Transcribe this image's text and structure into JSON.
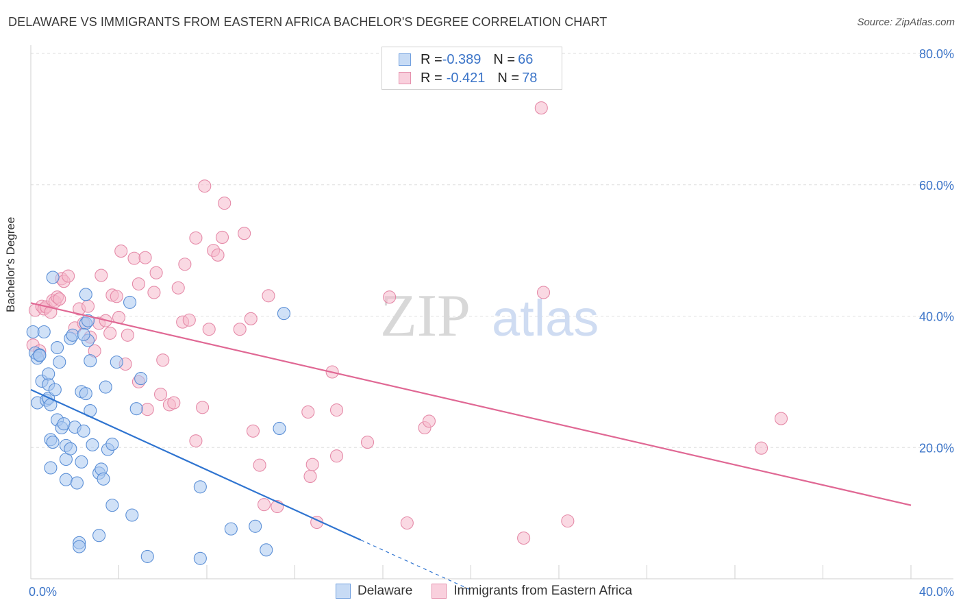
{
  "title": "DELAWARE VS IMMIGRANTS FROM EASTERN AFRICA BACHELOR'S DEGREE CORRELATION CHART",
  "source": "Source: ZipAtlas.com",
  "watermark": {
    "zip": "ZIP",
    "atlas": "atlas"
  },
  "legend_top": {
    "rows": [
      {
        "r_label": "R = ",
        "r_value": "-0.389",
        "n_label": "N = ",
        "n_value": "66"
      },
      {
        "r_label": "R = ",
        "r_value": "-0.421",
        "n_label": "N = ",
        "n_value": "78"
      }
    ]
  },
  "legend_bottom": [
    "Delaware",
    "Immigrants from Eastern Africa"
  ],
  "colors": {
    "blue_fill": "#aac8f0",
    "blue_stroke": "#5b8fd6",
    "blue_line": "#2f74d0",
    "pink_fill": "#f6b9cc",
    "pink_stroke": "#e58aa8",
    "pink_line": "#e06894",
    "axis_text": "#3b74c8",
    "grid": "#dddddd"
  },
  "chart_data": {
    "type": "scatter",
    "title": "DELAWARE VS IMMIGRANTS FROM EASTERN AFRICA BACHELOR'S DEGREE CORRELATION CHART",
    "xlabel": "",
    "ylabel": "Bachelor's Degree",
    "xlim": [
      0,
      40
    ],
    "ylim": [
      0,
      80
    ],
    "x_tick_labels": [
      "0.0%",
      "40.0%"
    ],
    "y_tick_labels": [
      "20.0%",
      "40.0%",
      "60.0%",
      "80.0%"
    ],
    "y_ticks": [
      20,
      40,
      60,
      80
    ],
    "grid": true,
    "legend_placement": "top-center",
    "series": [
      {
        "name": "Delaware",
        "r": -0.389,
        "n": 66,
        "trend": {
          "x": [
            0,
            15
          ],
          "y": [
            28.8,
            5.9
          ],
          "dashed_to": [
            20,
            -1.7
          ]
        },
        "points": [
          [
            0.1,
            37.6
          ],
          [
            0.2,
            34.4
          ],
          [
            0.3,
            33.6
          ],
          [
            0.3,
            26.8
          ],
          [
            0.4,
            34.1
          ],
          [
            0.5,
            30.1
          ],
          [
            0.6,
            37.6
          ],
          [
            0.7,
            27.2
          ],
          [
            0.8,
            29.6
          ],
          [
            0.8,
            31.2
          ],
          [
            0.8,
            27.5
          ],
          [
            0.9,
            26.5
          ],
          [
            0.9,
            16.9
          ],
          [
            0.9,
            21.2
          ],
          [
            1.0,
            20.8
          ],
          [
            1.1,
            28.8
          ],
          [
            1.0,
            45.9
          ],
          [
            1.2,
            35.2
          ],
          [
            1.3,
            33.0
          ],
          [
            1.2,
            24.2
          ],
          [
            1.4,
            23.0
          ],
          [
            1.5,
            23.6
          ],
          [
            1.6,
            20.3
          ],
          [
            1.6,
            18.2
          ],
          [
            1.6,
            15.1
          ],
          [
            1.8,
            19.8
          ],
          [
            1.8,
            36.6
          ],
          [
            2.0,
            23.1
          ],
          [
            2.1,
            14.6
          ],
          [
            2.2,
            5.5
          ],
          [
            2.2,
            4.9
          ],
          [
            2.3,
            28.5
          ],
          [
            2.3,
            17.8
          ],
          [
            2.4,
            22.5
          ],
          [
            2.5,
            28.2
          ],
          [
            2.5,
            43.3
          ],
          [
            2.5,
            38.9
          ],
          [
            2.6,
            39.3
          ],
          [
            2.6,
            36.3
          ],
          [
            2.7,
            33.2
          ],
          [
            2.7,
            25.6
          ],
          [
            2.8,
            20.4
          ],
          [
            3.1,
            16.1
          ],
          [
            3.1,
            6.6
          ],
          [
            3.2,
            16.7
          ],
          [
            3.3,
            15.2
          ],
          [
            3.4,
            29.2
          ],
          [
            3.5,
            19.7
          ],
          [
            3.7,
            20.5
          ],
          [
            3.7,
            11.2
          ],
          [
            3.9,
            33.0
          ],
          [
            4.5,
            42.1
          ],
          [
            4.6,
            9.7
          ],
          [
            4.8,
            25.9
          ],
          [
            5.0,
            30.5
          ],
          [
            5.3,
            3.4
          ],
          [
            7.7,
            14.0
          ],
          [
            7.7,
            3.1
          ],
          [
            9.1,
            7.6
          ],
          [
            10.2,
            8.0
          ],
          [
            10.7,
            4.4
          ],
          [
            11.3,
            22.9
          ],
          [
            11.5,
            40.4
          ],
          [
            1.9,
            37.1
          ],
          [
            0.4,
            34.0
          ],
          [
            2.4,
            37.2
          ]
        ]
      },
      {
        "name": "Immigrants from Eastern Africa",
        "r": -0.421,
        "n": 78,
        "trend": {
          "x": [
            0,
            40
          ],
          "y": [
            42.0,
            11.2
          ]
        },
        "points": [
          [
            0.1,
            35.6
          ],
          [
            0.2,
            40.9
          ],
          [
            0.4,
            34.7
          ],
          [
            0.5,
            41.5
          ],
          [
            0.6,
            41.1
          ],
          [
            0.7,
            41.4
          ],
          [
            0.9,
            40.6
          ],
          [
            1.0,
            42.4
          ],
          [
            1.1,
            42.2
          ],
          [
            1.2,
            42.9
          ],
          [
            1.3,
            42.6
          ],
          [
            1.4,
            45.7
          ],
          [
            1.5,
            45.3
          ],
          [
            1.7,
            46.1
          ],
          [
            2.0,
            38.2
          ],
          [
            2.2,
            41.1
          ],
          [
            2.4,
            38.9
          ],
          [
            2.6,
            41.5
          ],
          [
            2.7,
            36.8
          ],
          [
            2.9,
            34.7
          ],
          [
            3.1,
            38.9
          ],
          [
            3.2,
            46.2
          ],
          [
            3.4,
            39.3
          ],
          [
            3.6,
            37.4
          ],
          [
            3.7,
            43.2
          ],
          [
            3.9,
            43.0
          ],
          [
            4.0,
            39.8
          ],
          [
            4.1,
            49.9
          ],
          [
            4.3,
            32.7
          ],
          [
            4.4,
            37.1
          ],
          [
            4.7,
            48.8
          ],
          [
            4.9,
            44.9
          ],
          [
            4.9,
            30.0
          ],
          [
            5.2,
            48.9
          ],
          [
            5.3,
            25.8
          ],
          [
            5.6,
            43.6
          ],
          [
            5.7,
            46.6
          ],
          [
            5.9,
            28.1
          ],
          [
            6.0,
            33.3
          ],
          [
            6.3,
            26.5
          ],
          [
            6.5,
            26.8
          ],
          [
            6.7,
            44.3
          ],
          [
            6.9,
            39.1
          ],
          [
            7.0,
            47.9
          ],
          [
            7.2,
            39.4
          ],
          [
            7.5,
            21.0
          ],
          [
            7.5,
            51.9
          ],
          [
            7.8,
            26.1
          ],
          [
            7.9,
            59.8
          ],
          [
            8.1,
            38.0
          ],
          [
            8.3,
            50.0
          ],
          [
            8.5,
            49.3
          ],
          [
            8.7,
            52.0
          ],
          [
            8.8,
            57.2
          ],
          [
            9.5,
            38.0
          ],
          [
            9.7,
            52.6
          ],
          [
            10.0,
            39.6
          ],
          [
            10.1,
            22.5
          ],
          [
            10.4,
            17.3
          ],
          [
            10.6,
            11.3
          ],
          [
            10.8,
            43.1
          ],
          [
            11.2,
            11.0
          ],
          [
            12.6,
            25.4
          ],
          [
            12.7,
            15.6
          ],
          [
            12.8,
            17.4
          ],
          [
            13.0,
            8.6
          ],
          [
            13.7,
            31.5
          ],
          [
            13.9,
            25.7
          ],
          [
            13.9,
            18.7
          ],
          [
            15.3,
            20.8
          ],
          [
            16.3,
            42.9
          ],
          [
            17.1,
            8.5
          ],
          [
            17.9,
            23.0
          ],
          [
            18.1,
            24.0
          ],
          [
            22.4,
            6.2
          ],
          [
            23.2,
            71.7
          ],
          [
            23.3,
            43.6
          ],
          [
            24.4,
            8.8
          ],
          [
            33.2,
            19.9
          ],
          [
            34.1,
            24.4
          ]
        ]
      }
    ]
  }
}
